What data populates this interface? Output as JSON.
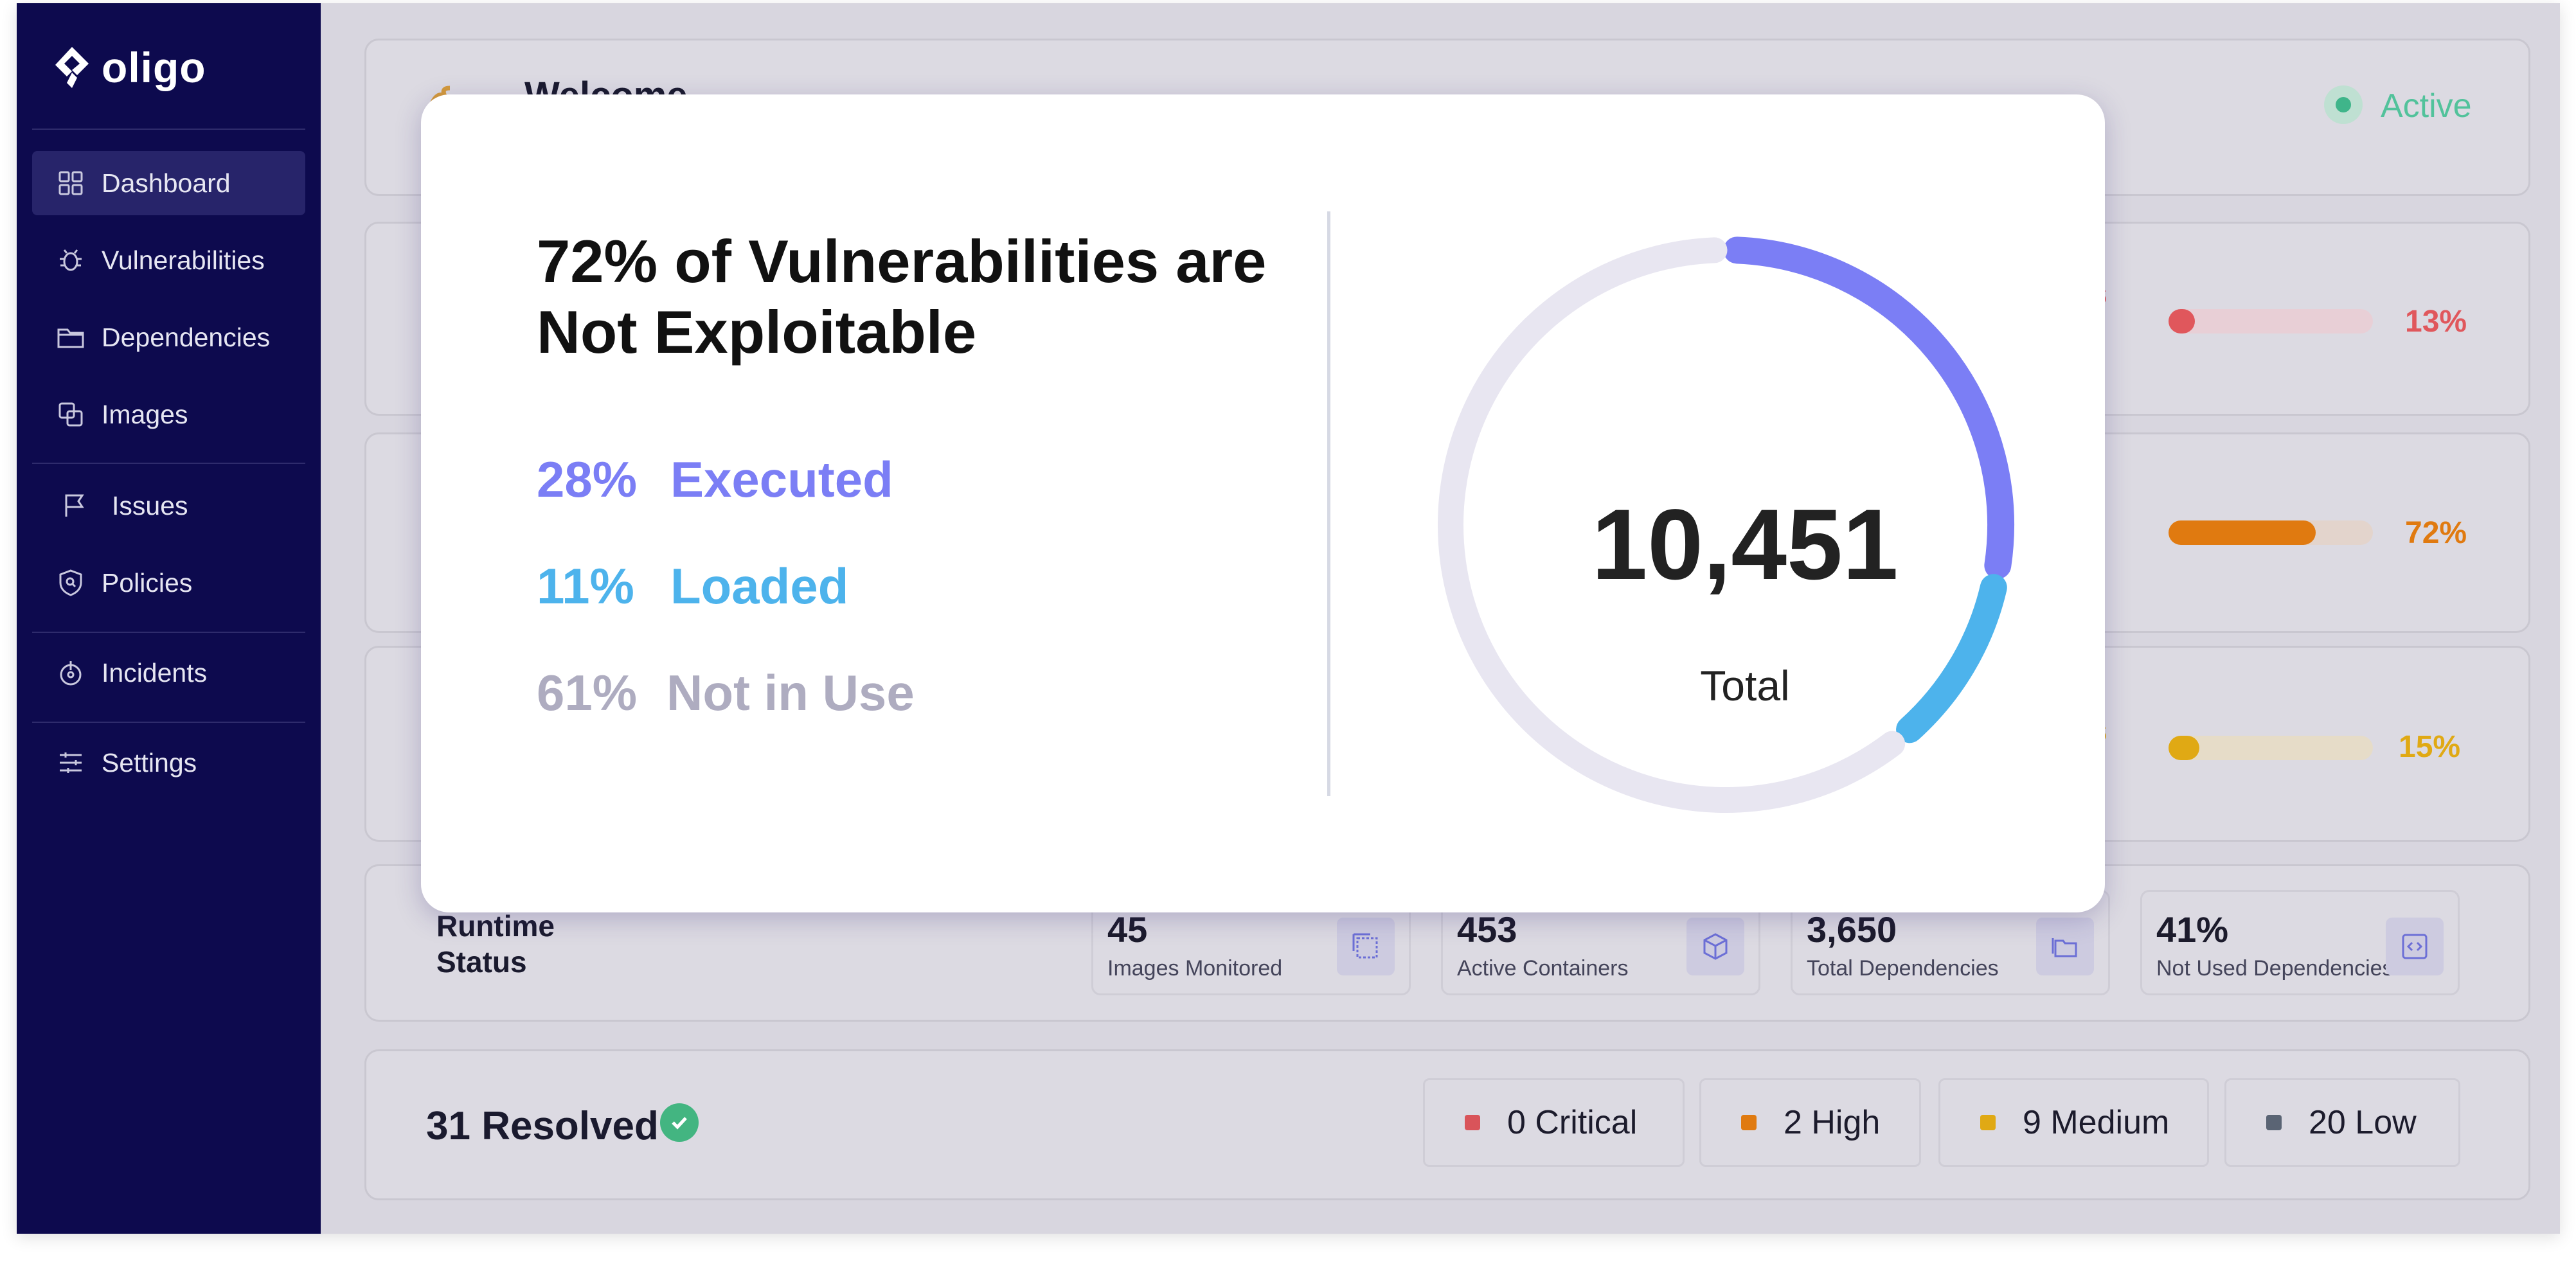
{
  "app": {
    "brand": "oligo"
  },
  "sidebar": {
    "items": [
      {
        "label": "Dashboard",
        "icon": "grid-icon",
        "active": true
      },
      {
        "label": "Vulnerabilities",
        "icon": "bug-icon"
      },
      {
        "label": "Dependencies",
        "icon": "folder-icon"
      },
      {
        "label": "Images",
        "icon": "copy-icon"
      },
      {
        "label": "Issues",
        "icon": "flag-icon"
      },
      {
        "label": "Policies",
        "icon": "shield-icon"
      },
      {
        "label": "Incidents",
        "icon": "alarm-icon"
      },
      {
        "label": "Settings",
        "icon": "sliders-icon"
      }
    ]
  },
  "header": {
    "welcome": "Welcome",
    "status": "Active"
  },
  "cards": [
    {
      "percent": "13%",
      "fraction": 0.13,
      "color": "#e0575c",
      "track": "#e8cfd6",
      "fragment": "s"
    },
    {
      "percent": "72%",
      "fraction": 0.72,
      "color": "#e07a10",
      "track": "#e3d4cc"
    },
    {
      "percent": "15%",
      "fraction": 0.15,
      "color": "#e0a914",
      "track": "#e6dcc8",
      "fragment": "s"
    }
  ],
  "runtime": {
    "title_line1": "Runtime",
    "title_line2": "Status",
    "stats": [
      {
        "value": "45",
        "label": "Images Monitored",
        "icon": "layers-icon"
      },
      {
        "value": "453",
        "label": "Active Containers",
        "icon": "cube-icon"
      },
      {
        "value": "3,650",
        "label": "Total Dependencies",
        "icon": "folders-icon"
      },
      {
        "value": "41%",
        "label": "Not Used Dependencies",
        "icon": "code-icon"
      }
    ]
  },
  "resolved": {
    "label": "31 Resolved",
    "severities": [
      {
        "label": "0 Critical",
        "color": "#d9545a"
      },
      {
        "label": "2 High",
        "color": "#e07a10"
      },
      {
        "label": "9 Medium",
        "color": "#e0a914"
      },
      {
        "label": "20 Low",
        "color": "#5a6474"
      }
    ]
  },
  "modal": {
    "title": "72% of Vulnerabilities are Not Exploitable",
    "total_value": "10,451",
    "total_label": "Total",
    "breakdown": [
      {
        "percent": "28%",
        "label": "Executed",
        "fraction": 0.28,
        "color": "#7b7ef5"
      },
      {
        "percent": "11%",
        "label": "Loaded",
        "fraction": 0.11,
        "color": "#4db3ec"
      },
      {
        "percent": "61%",
        "label": "Not in Use",
        "fraction": 0.61,
        "color": "#aeacc0"
      }
    ],
    "ring_track_color": "#e8e6f1"
  }
}
